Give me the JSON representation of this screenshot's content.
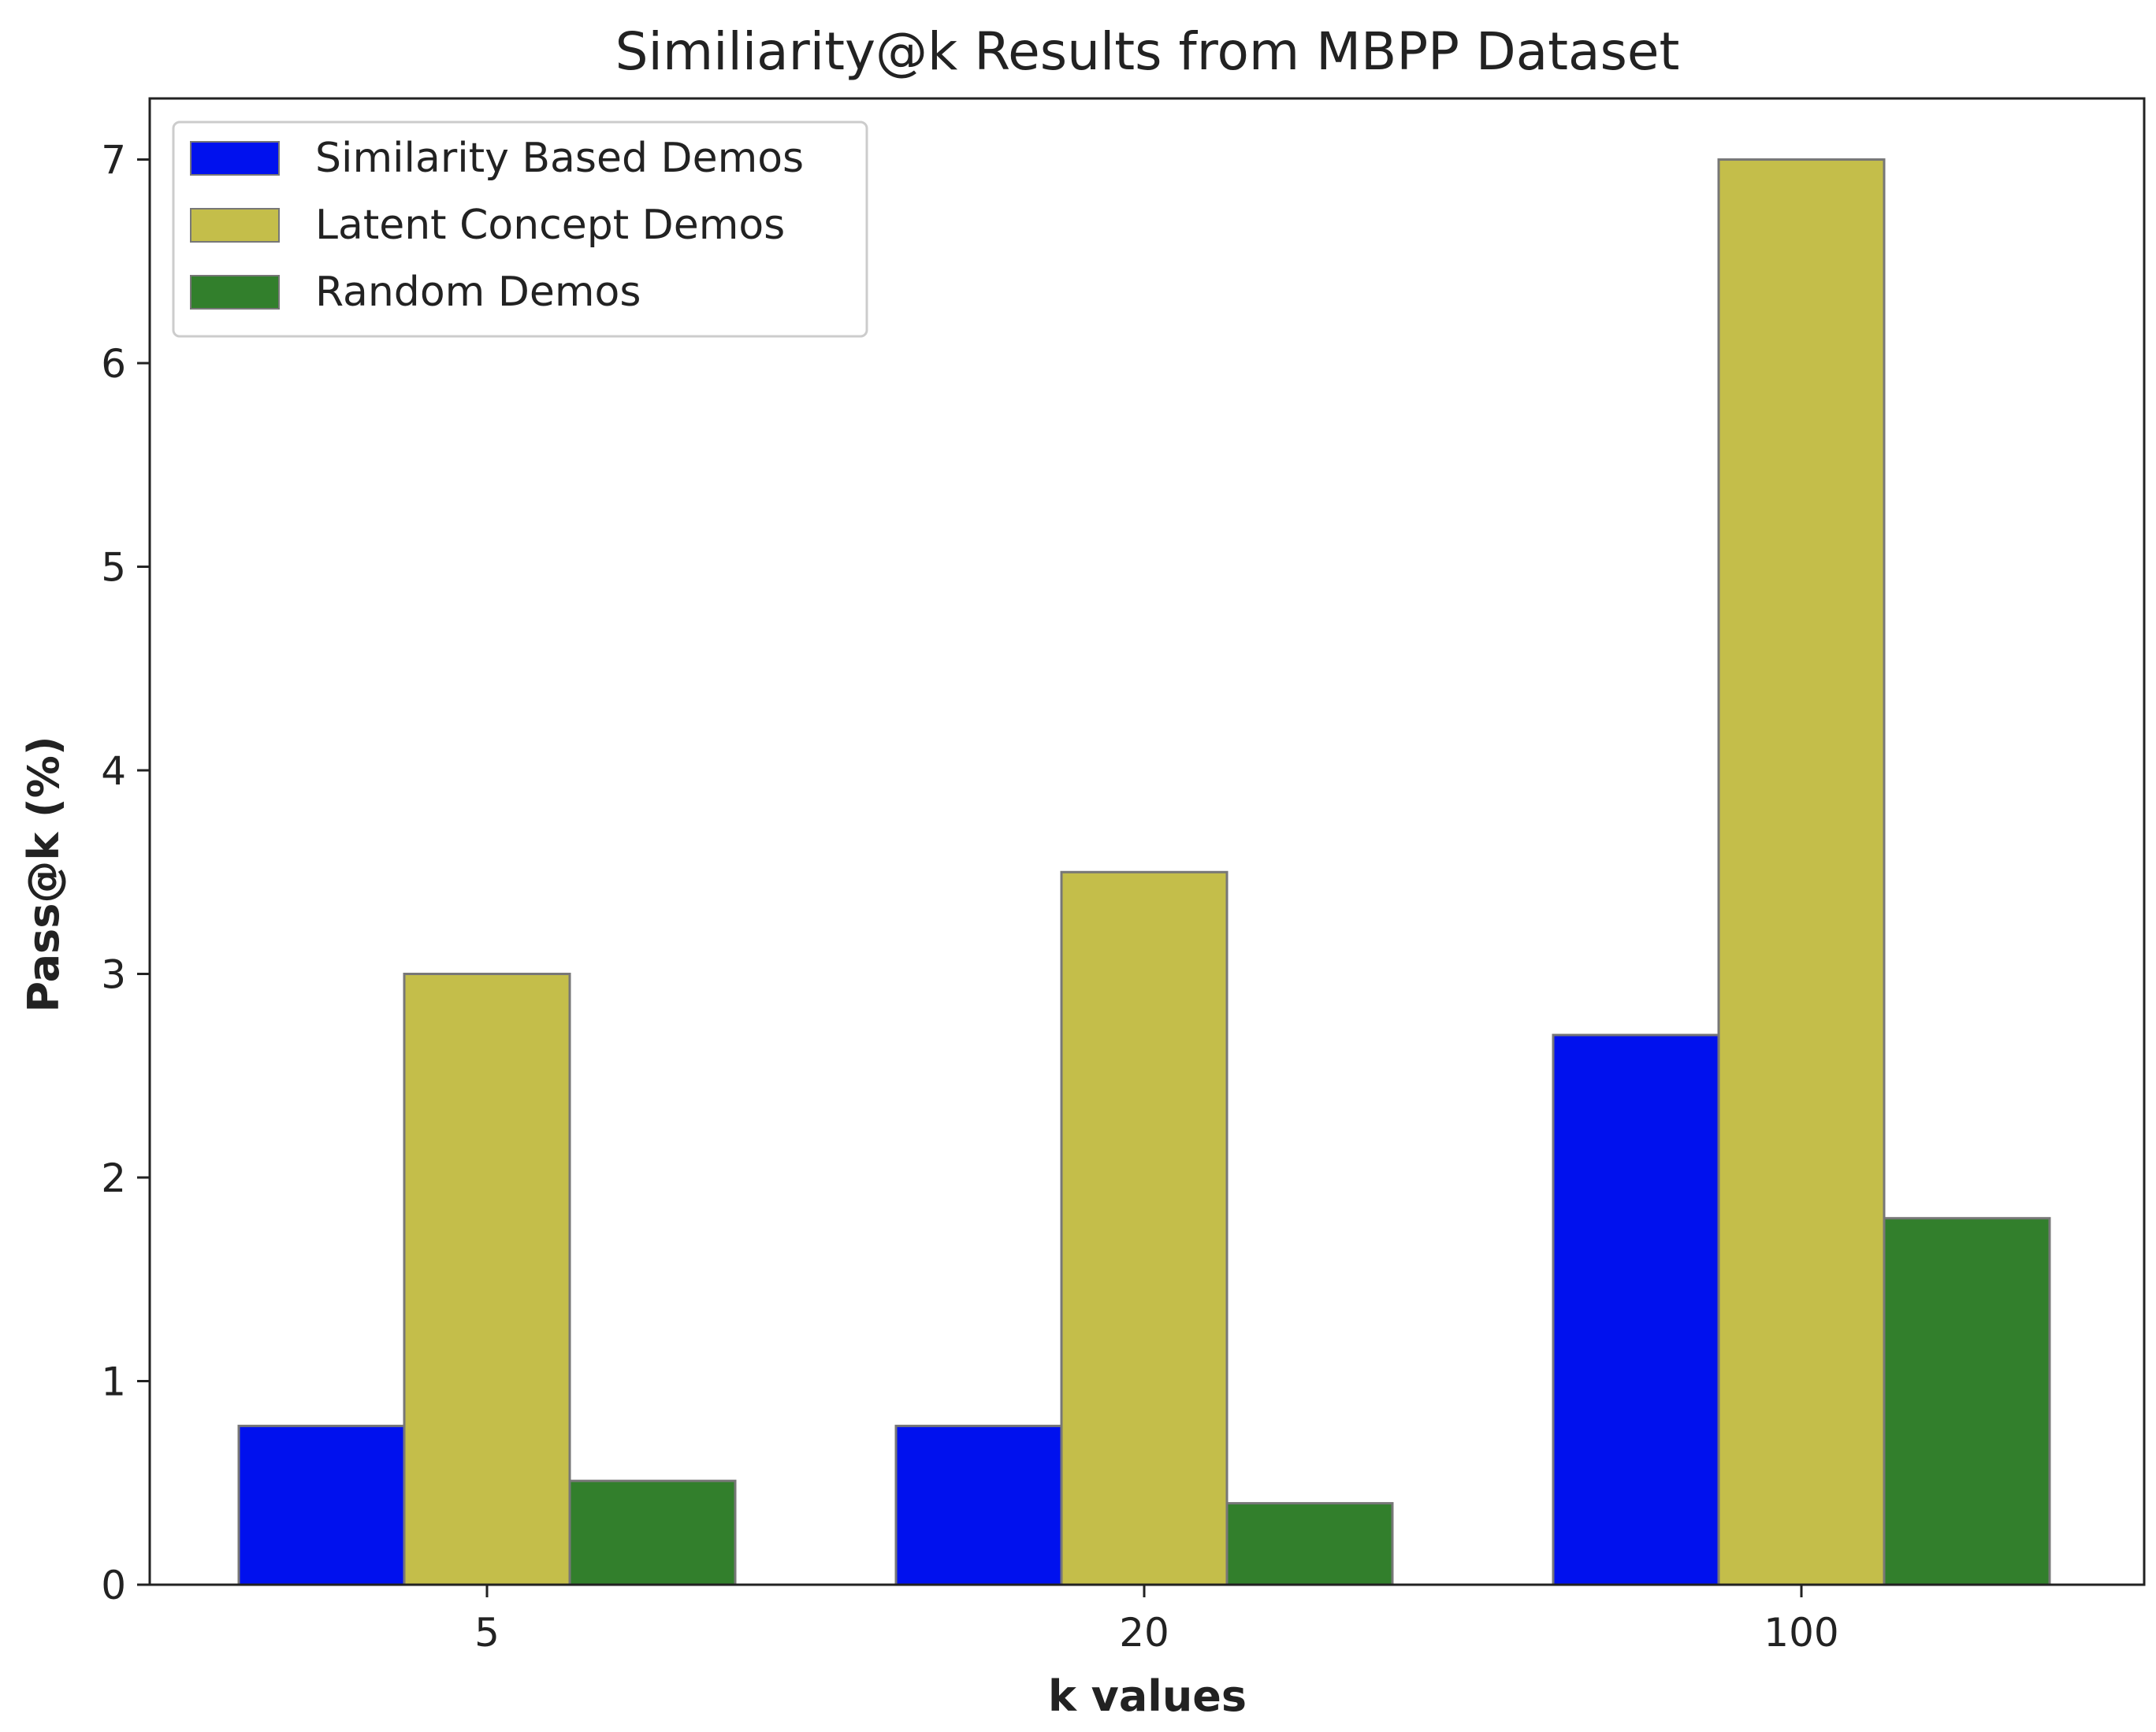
{
  "chart_data": {
    "type": "bar",
    "title": "Similiarity@k Results from MBPP Dataset",
    "xlabel": "k values",
    "ylabel": "Pass@k (%)",
    "categories": [
      "5",
      "20",
      "100"
    ],
    "ylim": [
      0,
      7.3
    ],
    "yticks": [
      0,
      1,
      2,
      3,
      4,
      5,
      6,
      7
    ],
    "grid": false,
    "legend_position": "top-left",
    "series": [
      {
        "name": "Similarity Based Demos",
        "color": "#0011ee",
        "values": [
          0.78,
          0.78,
          2.7
        ]
      },
      {
        "name": "Latent Concept Demos",
        "color": "#c4be4a",
        "values": [
          3.0,
          3.5,
          7.0
        ]
      },
      {
        "name": "Random Demos",
        "color": "#327f2c",
        "values": [
          0.51,
          0.4,
          1.8
        ]
      }
    ]
  }
}
